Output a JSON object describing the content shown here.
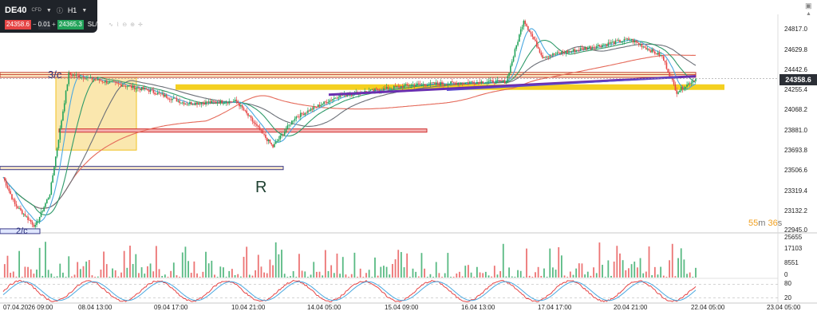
{
  "ticker": {
    "symbol": "DE40",
    "type_badge": "CFD",
    "timeframe": "H1",
    "bid": "24358.6",
    "minus": "−",
    "quantity": "0.01",
    "plus": "+",
    "ask": "24365.3",
    "sltp": "SL/TP"
  },
  "price_axis": [
    "24817.0",
    "24629.8",
    "24442.6",
    "24255.4",
    "24068.2",
    "23881.0",
    "23693.8",
    "23506.6",
    "23319.4",
    "23132.2",
    "22945.0"
  ],
  "current_price": "24358.6",
  "timer": {
    "minutes": "55",
    "m": "m",
    "seconds": "36",
    "s": "s"
  },
  "annotations": {
    "r": "R",
    "three_c": "3/c",
    "two_c": "2/c"
  },
  "volume_axis": [
    "25655",
    "17103",
    "8551",
    "0"
  ],
  "osc_axis": [
    "80",
    "20"
  ],
  "time_axis": [
    "07.04.2026 09:00",
    "08.04 13:00",
    "09.04 17:00",
    "10.04 21:00",
    "14.04 05:00",
    "15.04 09:00",
    "16.04 13:00",
    "17.04 17:00",
    "20.04 21:00",
    "22.04 05:00",
    "23.04 05:00"
  ],
  "colors": {
    "bull": "#22a35a",
    "bear": "#e64545",
    "zone_yellow": "#f6d36b",
    "purple": "#6a2fb0",
    "ma_blue": "#4aa8e0",
    "ma_green": "#2f9a6a",
    "ma_gray": "#6c7078",
    "ma_red": "#e56a5a"
  },
  "chart_data": {
    "type": "candlestick",
    "y_range": [
      22945.0,
      24950.0
    ],
    "candles_per_bar": "H1",
    "key_points": [
      {
        "t": "07.04 09:00",
        "close": 23450
      },
      {
        "t": "07.04 14:00",
        "close": 22995
      },
      {
        "t": "08.04 09:00",
        "close": 24400
      },
      {
        "t": "08.04 13:00",
        "close": 24330
      },
      {
        "t": "09.04 17:00",
        "close": 24130
      },
      {
        "t": "10.04 16:00",
        "close": 23730
      },
      {
        "t": "10.04 21:00",
        "close": 24000
      },
      {
        "t": "14.04 05:00",
        "close": 24200
      },
      {
        "t": "16.04 13:00",
        "close": 24330
      },
      {
        "t": "17.04 10:00",
        "close": 24900
      },
      {
        "t": "17.04 17:00",
        "close": 24560
      },
      {
        "t": "20.04 21:00",
        "close": 24720
      },
      {
        "t": "21.04 21:00",
        "close": 24235
      },
      {
        "t": "22.04 05:00",
        "close": 24358.6
      }
    ],
    "horizontal_zones": [
      {
        "kind": "resistance",
        "from": 24370,
        "to": 24415
      },
      {
        "kind": "support",
        "from": 23870,
        "to": 23890
      },
      {
        "kind": "support",
        "from": 23525,
        "to": 23545
      },
      {
        "kind": "yellow-line",
        "value": 24280
      }
    ],
    "volume_range": [
      0,
      25655
    ],
    "oscillator_range": [
      0,
      100
    ],
    "oscillator_levels": [
      80,
      20
    ]
  }
}
